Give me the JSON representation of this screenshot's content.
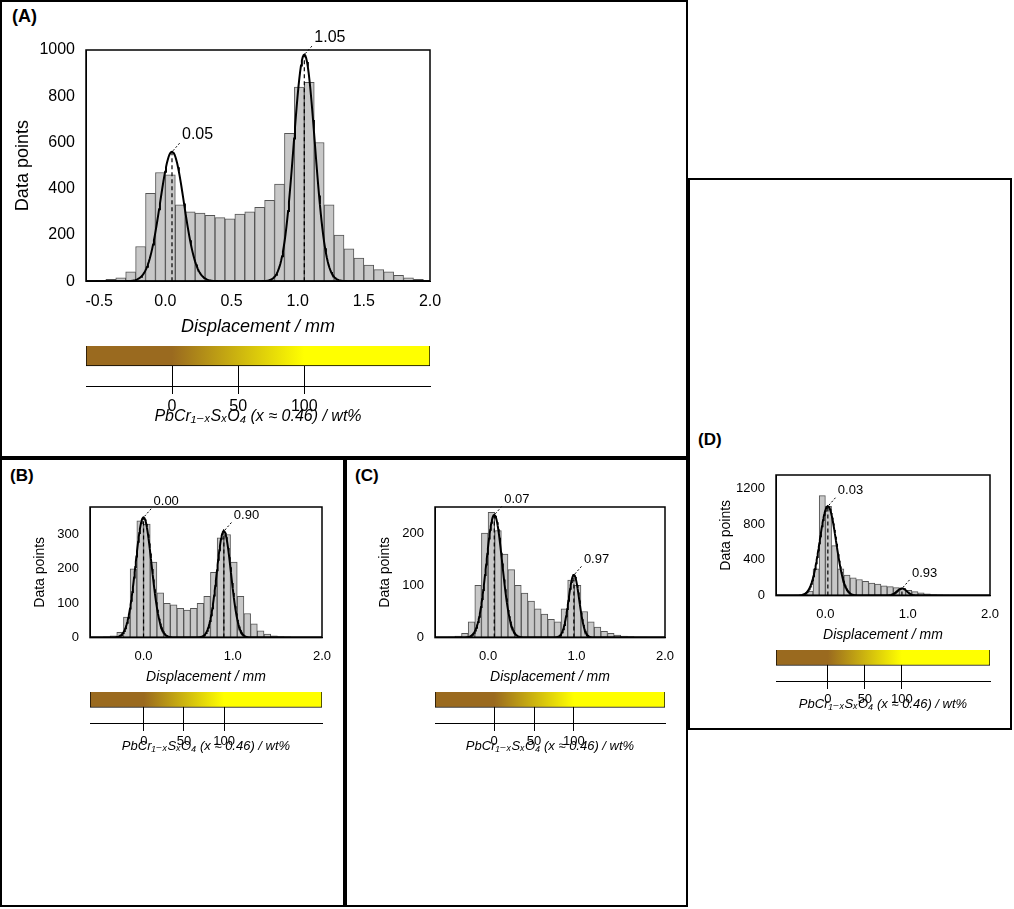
{
  "chart_data": [
    {
      "type": "histogram",
      "panel": "(A)",
      "ylabel": "Data points",
      "xlabel": "Displacement / mm",
      "color": "#c8c8c8",
      "grid": false,
      "bins": [
        -0.525,
        -0.45,
        -0.375,
        -0.3,
        -0.225,
        -0.15,
        -0.075,
        0,
        0.075,
        0.15,
        0.225,
        0.3,
        0.375,
        0.45,
        0.525,
        0.6,
        0.675,
        0.75,
        0.825,
        0.9,
        0.975,
        1.05,
        1.125,
        1.2,
        1.275,
        1.35,
        1.425,
        1.5,
        1.575,
        1.65,
        1.725,
        1.8,
        1.875,
        1.95
      ],
      "counts": [
        3,
        8,
        15,
        40,
        150,
        380,
        470,
        460,
        330,
        300,
        295,
        285,
        275,
        270,
        290,
        300,
        320,
        350,
        420,
        640,
        840,
        860,
        600,
        330,
        200,
        140,
        100,
        70,
        50,
        40,
        25,
        15,
        8
      ],
      "xlim": [
        -0.6,
        2.0
      ],
      "xticks": [
        -0.5,
        {
          "value": 0,
          "label": "0.0"
        },
        0.5,
        {
          "value": 1,
          "label": "1.0"
        },
        1.5,
        {
          "value": 2,
          "label": "2.0"
        }
      ],
      "ylim": [
        0,
        1000
      ],
      "yticks": [
        0,
        200,
        400,
        600,
        800,
        1000
      ],
      "fits": [
        {
          "center": 0.05,
          "height": 560,
          "sigma": 0.09,
          "label": "0.05"
        },
        {
          "center": 1.05,
          "height": 980,
          "sigma": 0.08,
          "label": "1.05"
        }
      ],
      "colorbar": {
        "label": "PbCr₁₋ₓSₓO₄ (x ≈ 0.46) / wt%",
        "range": [
          -65,
          195
        ],
        "ticks": [
          0,
          50,
          100
        ],
        "colors": [
          "#9a6a1f",
          "#ffff00"
        ],
        "stops": [
          0,
          100
        ]
      }
    },
    {
      "type": "histogram",
      "panel": "(B)",
      "ylabel": "Data points",
      "xlabel": "Displacement / mm",
      "color": "#c8c8c8",
      "grid": false,
      "bins": [
        -0.525,
        -0.45,
        -0.375,
        -0.3,
        -0.225,
        -0.15,
        -0.075,
        0,
        0.075,
        0.15,
        0.225,
        0.3,
        0.375,
        0.45,
        0.525,
        0.6,
        0.675,
        0.75,
        0.825,
        0.9,
        0.975,
        1.05,
        1.125,
        1.2,
        1.275,
        1.35,
        1.425,
        1.5,
        1.575,
        1.65,
        1.725,
        1.8,
        1.875,
        1.95
      ],
      "counts": [
        0,
        2,
        5,
        15,
        60,
        200,
        340,
        330,
        220,
        130,
        100,
        95,
        85,
        80,
        85,
        100,
        120,
        190,
        290,
        300,
        220,
        120,
        70,
        40,
        20,
        10,
        5,
        3,
        2,
        1,
        0,
        0,
        0
      ],
      "xlim": [
        -0.6,
        2.0
      ],
      "xticks": [
        {
          "value": 0,
          "label": "0.0"
        },
        {
          "value": 1,
          "label": "1.0"
        },
        {
          "value": 2,
          "label": "2.0"
        }
      ],
      "ylim": [
        0,
        380
      ],
      "yticks": [
        0,
        100,
        200,
        300
      ],
      "fits": [
        {
          "center": 0,
          "height": 350,
          "sigma": 0.09,
          "label": "0.00"
        },
        {
          "center": 0.9,
          "height": 310,
          "sigma": 0.08,
          "label": "0.90"
        }
      ],
      "colorbar": {
        "label": "PbCr₁₋ₓSₓO₄ (x ≈ 0.46) / wt%",
        "range": [
          -67,
          222
        ],
        "ticks": [
          0,
          50,
          100
        ],
        "colors": [
          "#9a6a1f",
          "#ffff00"
        ],
        "stops": [
          0,
          100
        ]
      }
    },
    {
      "type": "histogram",
      "panel": "(C)",
      "ylabel": "Data points",
      "xlabel": "Displacement / mm",
      "color": "#c8c8c8",
      "grid": false,
      "bins": [
        -0.525,
        -0.45,
        -0.375,
        -0.3,
        -0.225,
        -0.15,
        -0.075,
        0,
        0.075,
        0.15,
        0.225,
        0.3,
        0.375,
        0.45,
        0.525,
        0.6,
        0.675,
        0.75,
        0.825,
        0.9,
        0.975,
        1.05,
        1.125,
        1.2,
        1.275,
        1.35,
        1.425,
        1.5,
        1.575,
        1.65,
        1.725,
        1.8,
        1.875,
        1.95
      ],
      "counts": [
        0,
        1,
        3,
        8,
        30,
        100,
        200,
        240,
        205,
        160,
        130,
        100,
        85,
        70,
        55,
        45,
        35,
        30,
        55,
        110,
        100,
        50,
        30,
        20,
        12,
        8,
        5,
        3,
        2,
        1,
        1,
        0,
        0
      ],
      "xlim": [
        -0.6,
        2.0
      ],
      "xticks": [
        {
          "value": 0,
          "label": "0.0"
        },
        {
          "value": 1,
          "label": "1.0"
        },
        {
          "value": 2,
          "label": "2.0"
        }
      ],
      "ylim": [
        0,
        250
      ],
      "yticks": [
        0,
        100,
        200
      ],
      "fits": [
        {
          "center": 0.07,
          "height": 235,
          "sigma": 0.09,
          "label": "0.07"
        },
        {
          "center": 0.97,
          "height": 120,
          "sigma": 0.06,
          "label": "0.97"
        }
      ],
      "colorbar": {
        "label": "PbCr₁₋ₓSₓO₄ (x ≈ 0.46) / wt%",
        "range": [
          -74,
          214
        ],
        "ticks": [
          0,
          50,
          100
        ],
        "colors": [
          "#9a6a1f",
          "#ffff00"
        ],
        "stops": [
          0,
          100
        ]
      }
    },
    {
      "type": "histogram",
      "panel": "(D)",
      "ylabel": "Data points",
      "xlabel": "Displacement / mm",
      "color": "#c8c8c8",
      "grid": false,
      "bins": [
        -0.525,
        -0.45,
        -0.375,
        -0.3,
        -0.225,
        -0.15,
        -0.075,
        0,
        0.075,
        0.15,
        0.225,
        0.3,
        0.375,
        0.45,
        0.525,
        0.6,
        0.675,
        0.75,
        0.825,
        0.9,
        0.975,
        1.05,
        1.125,
        1.2,
        1.275,
        1.35,
        1.425,
        1.5,
        1.575,
        1.65,
        1.725,
        1.8,
        1.875,
        1.95
      ],
      "counts": [
        0,
        2,
        5,
        10,
        50,
        300,
        1120,
        1000,
        560,
        300,
        230,
        200,
        180,
        160,
        140,
        130,
        110,
        100,
        90,
        80,
        60,
        45,
        30,
        20,
        12,
        8,
        5,
        3,
        2,
        1,
        1,
        0,
        0
      ],
      "xlim": [
        -0.6,
        2.0
      ],
      "xticks": [
        {
          "value": 0,
          "label": "0.0"
        },
        {
          "value": 1,
          "label": "1.0"
        },
        {
          "value": 2,
          "label": "2.0"
        }
      ],
      "ylim": [
        0,
        1350
      ],
      "yticks": [
        0,
        400,
        800,
        1200
      ],
      "fits": [
        {
          "center": 0.03,
          "height": 1000,
          "sigma": 0.1,
          "label": "0.03"
        },
        {
          "center": 0.93,
          "height": 80,
          "sigma": 0.06,
          "label": "0.93"
        }
      ],
      "colorbar": {
        "label": "PbCr₁₋ₓSₓO₄ (x ≈ 0.46) / wt%",
        "range": [
          -70,
          219
        ],
        "ticks": [
          0,
          50,
          100
        ],
        "colors": [
          "#9a6a1f",
          "#ffff00"
        ],
        "stops": [
          0,
          100
        ]
      }
    }
  ]
}
